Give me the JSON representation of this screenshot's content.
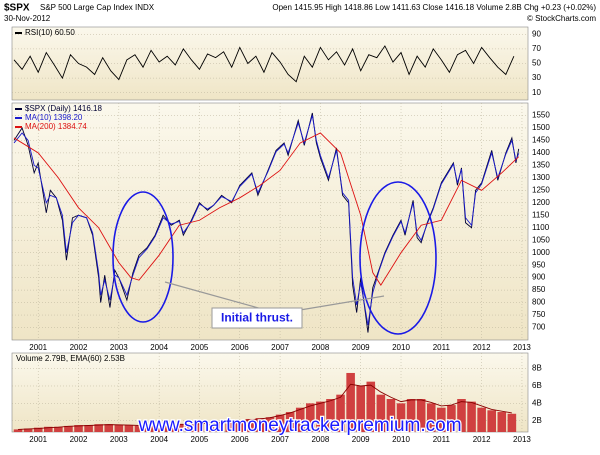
{
  "header": {
    "symbol": "$SPX",
    "name": "S&P 500 Large Cap Index INDX",
    "date": "30-Nov-2012",
    "quote": "Open 1415.95  High 1418.86  Low 1411.63  Close 1416.18  Volume 2.8B  Chg +0.23 (+0.02%)",
    "credit": "© StockCharts.com"
  },
  "watermark": "www.smartmoneytrackerpremium.com",
  "chart_data": [
    {
      "type": "line",
      "xlim": [
        2000.35,
        2013.15
      ],
      "ylim": [
        0,
        100
      ],
      "yticks": [
        10,
        30,
        50,
        70,
        90
      ],
      "grid": true,
      "x": [
        2000.4,
        2000.6,
        2000.8,
        2001.0,
        2001.2,
        2001.4,
        2001.6,
        2001.8,
        2002.0,
        2002.2,
        2002.4,
        2002.6,
        2002.8,
        2003.0,
        2003.2,
        2003.4,
        2003.6,
        2003.8,
        2004.0,
        2004.2,
        2004.4,
        2004.6,
        2004.8,
        2005.0,
        2005.2,
        2005.4,
        2005.6,
        2005.8,
        2006.0,
        2006.2,
        2006.4,
        2006.6,
        2006.8,
        2007.0,
        2007.2,
        2007.4,
        2007.6,
        2007.8,
        2008.0,
        2008.2,
        2008.4,
        2008.6,
        2008.8,
        2009.0,
        2009.2,
        2009.4,
        2009.6,
        2009.8,
        2010.0,
        2010.2,
        2010.4,
        2010.6,
        2010.8,
        2011.0,
        2011.2,
        2011.4,
        2011.6,
        2011.8,
        2012.0,
        2012.2,
        2012.4,
        2012.6,
        2012.8
      ],
      "series": [
        {
          "name": "RSI(10) 60.50",
          "color": "#000000",
          "values": [
            55,
            42,
            60,
            38,
            65,
            48,
            30,
            62,
            50,
            45,
            35,
            58,
            40,
            28,
            55,
            62,
            45,
            68,
            52,
            60,
            48,
            70,
            55,
            42,
            63,
            58,
            66,
            45,
            72,
            50,
            60,
            38,
            65,
            52,
            35,
            25,
            60,
            45,
            72,
            55,
            66,
            48,
            70,
            40,
            62,
            58,
            74,
            52,
            65,
            35,
            60,
            45,
            70,
            55,
            38,
            62,
            68,
            50,
            72,
            58,
            45,
            35,
            60
          ]
        }
      ]
    },
    {
      "type": "line",
      "xlim": [
        2000.35,
        2013.15
      ],
      "ylim": [
        650,
        1600
      ],
      "yticks": [
        700,
        750,
        800,
        850,
        900,
        950,
        1000,
        1050,
        1100,
        1150,
        1200,
        1250,
        1300,
        1350,
        1400,
        1450,
        1500,
        1550
      ],
      "xticks": [
        2001,
        2002,
        2003,
        2004,
        2005,
        2006,
        2007,
        2008,
        2009,
        2010,
        2011,
        2012,
        2013
      ],
      "grid": true,
      "annotation": "Initial thrust.",
      "x": [
        2000.4,
        2000.6,
        2000.75,
        2000.9,
        2001.0,
        2001.2,
        2001.3,
        2001.45,
        2001.6,
        2001.7,
        2001.85,
        2002.0,
        2002.2,
        2002.35,
        2002.5,
        2002.55,
        2002.65,
        2002.78,
        2002.9,
        2003.0,
        2003.2,
        2003.35,
        2003.5,
        2003.7,
        2003.9,
        2004.1,
        2004.3,
        2004.5,
        2004.6,
        2004.8,
        2005.0,
        2005.2,
        2005.35,
        2005.55,
        2005.8,
        2006.0,
        2006.3,
        2006.45,
        2006.7,
        2006.9,
        2007.1,
        2007.2,
        2007.45,
        2007.6,
        2007.8,
        2007.9,
        2008.0,
        2008.2,
        2008.4,
        2008.55,
        2008.7,
        2008.8,
        2008.9,
        2009.0,
        2009.18,
        2009.3,
        2009.45,
        2009.6,
        2009.8,
        2010.0,
        2010.1,
        2010.3,
        2010.4,
        2010.5,
        2010.65,
        2010.8,
        2011.0,
        2011.3,
        2011.4,
        2011.5,
        2011.6,
        2011.75,
        2011.85,
        2012.0,
        2012.25,
        2012.4,
        2012.6,
        2012.75,
        2012.85,
        2012.92
      ],
      "series": [
        {
          "name": "$SPX (Daily) 1416.18",
          "color": "#000033",
          "values": [
            1450,
            1500,
            1430,
            1320,
            1360,
            1160,
            1250,
            1220,
            1130,
            970,
            1140,
            1150,
            1140,
            1070,
            900,
            800,
            910,
            780,
            930,
            900,
            810,
            920,
            990,
            1020,
            1070,
            1150,
            1110,
            1130,
            1070,
            1130,
            1200,
            1170,
            1190,
            1230,
            1200,
            1270,
            1320,
            1230,
            1330,
            1410,
            1440,
            1390,
            1530,
            1430,
            1560,
            1440,
            1380,
            1290,
            1420,
            1230,
            1200,
            870,
            760,
            900,
            680,
            860,
            930,
            1000,
            1070,
            1130,
            1070,
            1210,
            1060,
            1040,
            1120,
            1180,
            1280,
            1360,
            1270,
            1340,
            1120,
            1100,
            1250,
            1280,
            1410,
            1290,
            1400,
            1460,
            1360,
            1416
          ]
        },
        {
          "name": "MA(10) 1398.20",
          "color": "#1a1acc",
          "values": [
            1440,
            1480,
            1450,
            1350,
            1340,
            1200,
            1230,
            1220,
            1150,
            1000,
            1120,
            1150,
            1140,
            1080,
            920,
            830,
            890,
            810,
            910,
            900,
            830,
            910,
            980,
            1015,
            1065,
            1140,
            1115,
            1125,
            1080,
            1125,
            1195,
            1175,
            1190,
            1225,
            1205,
            1265,
            1315,
            1240,
            1325,
            1405,
            1435,
            1400,
            1520,
            1440,
            1550,
            1450,
            1390,
            1300,
            1410,
            1240,
            1210,
            900,
            790,
            880,
            710,
            840,
            925,
            995,
            1065,
            1125,
            1080,
            1200,
            1075,
            1050,
            1115,
            1175,
            1275,
            1355,
            1280,
            1335,
            1140,
            1110,
            1240,
            1275,
            1400,
            1300,
            1395,
            1450,
            1370,
            1398
          ]
        },
        {
          "name": "MA(200) 1384.74",
          "color": "#dd1111",
          "x": [
            2000.4,
            2001.0,
            2001.5,
            2002.0,
            2002.5,
            2003.0,
            2003.3,
            2003.5,
            2004.0,
            2004.5,
            2005.0,
            2005.5,
            2006.0,
            2006.5,
            2007.0,
            2007.5,
            2008.0,
            2008.5,
            2009.0,
            2009.3,
            2009.5,
            2010.0,
            2010.5,
            2011.0,
            2011.5,
            2012.0,
            2012.5,
            2012.92
          ],
          "values": [
            1460,
            1400,
            1300,
            1180,
            1100,
            960,
            900,
            890,
            990,
            1110,
            1130,
            1180,
            1220,
            1270,
            1330,
            1440,
            1480,
            1400,
            1150,
            920,
            870,
            1000,
            1110,
            1130,
            1290,
            1250,
            1320,
            1385
          ]
        }
      ]
    },
    {
      "type": "bar",
      "title": "Volume 2.79B, EMA(60) 2.53B",
      "xlim": [
        2000.35,
        2013.15
      ],
      "ylim": [
        0.7,
        9.8
      ],
      "yticks": [
        {
          "value": 2,
          "label": "2B"
        },
        {
          "value": 4,
          "label": "4B"
        },
        {
          "value": 6,
          "label": "6B"
        },
        {
          "value": 8,
          "label": "8B"
        }
      ],
      "xticks": [
        2001,
        2002,
        2003,
        2004,
        2005,
        2006,
        2007,
        2008,
        2009,
        2010,
        2011,
        2012,
        2013
      ],
      "grid": true,
      "x": [
        2000.5,
        2000.75,
        2001.0,
        2001.25,
        2001.5,
        2001.75,
        2002.0,
        2002.25,
        2002.5,
        2002.75,
        2003.0,
        2003.25,
        2003.5,
        2003.75,
        2004.0,
        2004.25,
        2004.5,
        2004.75,
        2005.0,
        2005.25,
        2005.5,
        2005.75,
        2006.0,
        2006.25,
        2006.5,
        2006.75,
        2007.0,
        2007.25,
        2007.5,
        2007.75,
        2008.0,
        2008.25,
        2008.5,
        2008.75,
        2009.0,
        2009.25,
        2009.5,
        2009.75,
        2010.0,
        2010.25,
        2010.5,
        2010.75,
        2011.0,
        2011.25,
        2011.5,
        2011.75,
        2012.0,
        2012.25,
        2012.5,
        2012.75
      ],
      "series": [
        {
          "color": "#d04040",
          "values": [
            1.0,
            1.1,
            1.2,
            1.3,
            1.3,
            1.4,
            1.5,
            1.5,
            1.6,
            1.6,
            1.5,
            1.5,
            1.4,
            1.5,
            1.5,
            1.6,
            1.6,
            1.6,
            1.7,
            1.8,
            1.8,
            1.9,
            2.0,
            2.2,
            2.3,
            2.4,
            2.7,
            3.0,
            3.5,
            4.0,
            4.2,
            4.5,
            5.0,
            7.5,
            6.0,
            6.5,
            5.0,
            4.5,
            4.0,
            4.5,
            4.5,
            4.0,
            3.5,
            3.8,
            4.5,
            4.2,
            3.5,
            3.2,
            3.0,
            2.8
          ]
        },
        {
          "type": "line",
          "color": "#880000",
          "values": [
            1.0,
            1.05,
            1.1,
            1.2,
            1.25,
            1.35,
            1.4,
            1.45,
            1.5,
            1.55,
            1.52,
            1.5,
            1.45,
            1.48,
            1.5,
            1.55,
            1.58,
            1.6,
            1.65,
            1.72,
            1.78,
            1.85,
            1.95,
            2.1,
            2.2,
            2.35,
            2.6,
            2.9,
            3.3,
            3.7,
            4.0,
            4.3,
            4.7,
            6.2,
            6.0,
            6.1,
            5.3,
            4.7,
            4.2,
            4.4,
            4.4,
            4.1,
            3.7,
            3.8,
            4.2,
            4.1,
            3.7,
            3.3,
            3.1,
            2.9
          ]
        }
      ]
    }
  ]
}
